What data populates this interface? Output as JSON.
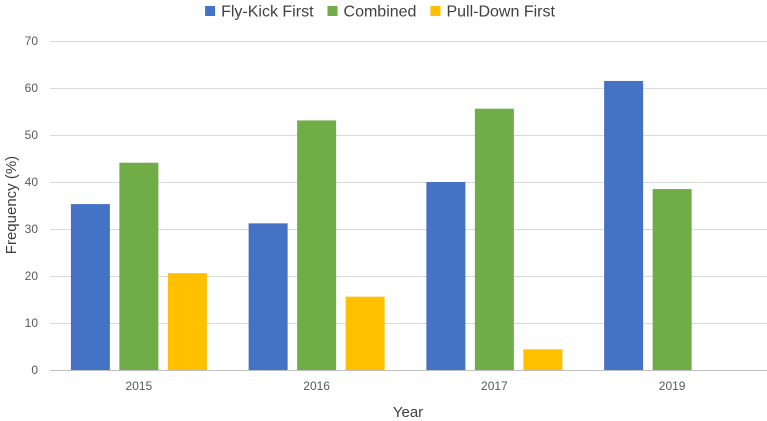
{
  "chart_data": {
    "type": "bar",
    "title": "",
    "xlabel": "Year",
    "ylabel": "Frequency (%)",
    "categories": [
      "2015",
      "2016",
      "2017",
      "2019"
    ],
    "ylim": [
      0,
      70
    ],
    "yticks": [
      0,
      10,
      20,
      30,
      40,
      50,
      60,
      70
    ],
    "grid": true,
    "legend_position": "top",
    "series": [
      {
        "name": "Fly-Kick First",
        "color": "#4472c4",
        "values": [
          35.3,
          31.2,
          40.0,
          61.5
        ]
      },
      {
        "name": "Combined",
        "color": "#70ad47",
        "values": [
          44.1,
          53.1,
          55.6,
          38.5
        ]
      },
      {
        "name": "Pull-Down First",
        "color": "#ffc000",
        "values": [
          20.6,
          15.6,
          4.4,
          null
        ]
      }
    ]
  }
}
